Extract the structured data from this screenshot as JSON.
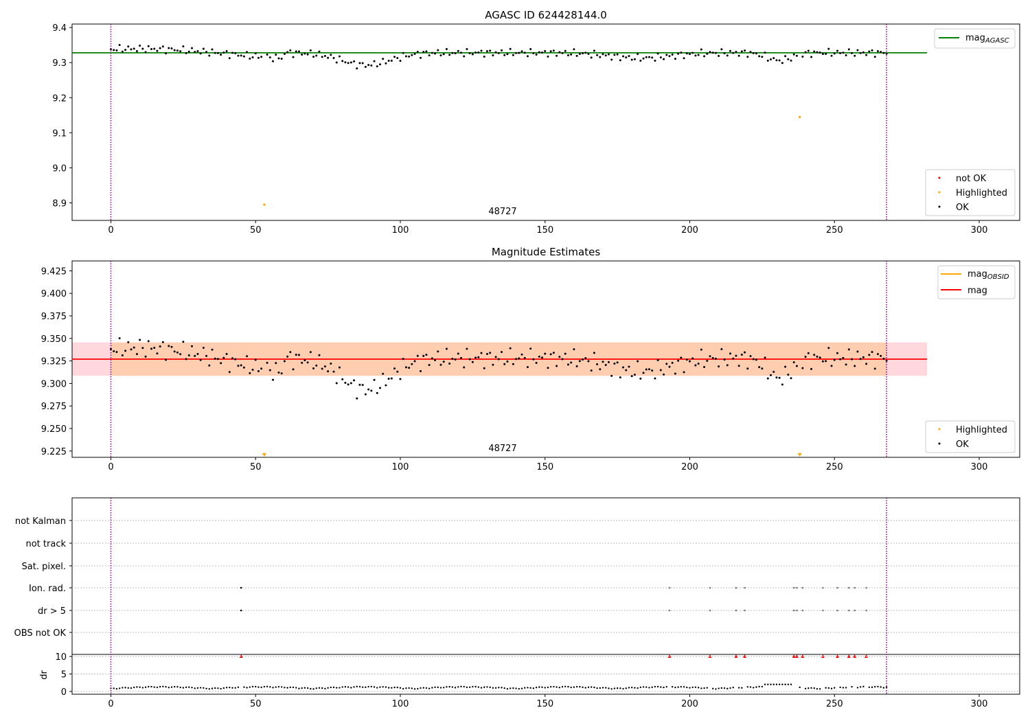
{
  "chart_data": [
    {
      "type": "scatter",
      "title": "AGASC ID 624428144.0",
      "annotation": "48727",
      "xlim": [
        -13.4,
        314
      ],
      "ylim": [
        8.85,
        9.41
      ],
      "xticks": [
        "0",
        "50",
        "100",
        "150",
        "200",
        "250",
        "300"
      ],
      "yticks": [
        "9.4",
        "9.3",
        "9.2",
        "9.1",
        "9.0",
        "8.9"
      ],
      "ref_line": {
        "y": 9.328,
        "x_end": 282,
        "color": "#008000"
      },
      "vlines": [
        0,
        268
      ],
      "vline_color": "#800080",
      "legend_top": {
        "placement": "top-right",
        "entries": [
          {
            "label": "mag",
            "sub": "AGASC",
            "color": "#008000"
          }
        ]
      },
      "legend_bottom": {
        "placement": "bottom-right",
        "entries": [
          {
            "label": "not OK",
            "color": "#ff0000"
          },
          {
            "label": "Highlighted",
            "color": "#ffa500"
          },
          {
            "label": "OK",
            "color": "#000000"
          }
        ]
      },
      "highlighted": [
        {
          "x": 53,
          "y": 8.895
        },
        {
          "x": 238,
          "y": 9.145
        }
      ]
    },
    {
      "type": "scatter",
      "title": "Magnitude Estimates",
      "annotation": "48727",
      "xlim": [
        -13.4,
        314
      ],
      "ylim": [
        9.218,
        9.436
      ],
      "xticks": [
        "0",
        "50",
        "100",
        "150",
        "200",
        "250",
        "300"
      ],
      "yticks": [
        "9.425",
        "9.400",
        "9.375",
        "9.350",
        "9.325",
        "9.300",
        "9.275",
        "9.250",
        "9.225"
      ],
      "mag_line": {
        "y": 9.327,
        "x_end": 282,
        "color": "#ff0000"
      },
      "band": {
        "y_low": 9.3085,
        "y_high": 9.3455,
        "x_start": 0,
        "x_end": 268,
        "color": "#ffa500"
      },
      "band_outer": {
        "y_low": 9.3085,
        "y_high": 9.3455,
        "x_start": -13.4,
        "x_end": 282,
        "color": "#ffb6c1"
      },
      "vlines": [
        0,
        268
      ],
      "legend_top": {
        "placement": "top-right",
        "entries": [
          {
            "label": "mag",
            "sub": "OBSID",
            "color": "#ffa500"
          },
          {
            "label": "mag",
            "sub": "",
            "color": "#ff0000"
          }
        ]
      },
      "legend_bottom": {
        "placement": "bottom-right",
        "entries": [
          {
            "label": "Highlighted",
            "color": "#ffa500"
          },
          {
            "label": "OK",
            "color": "#000000"
          }
        ]
      },
      "highlighted_offscale": [
        53,
        238
      ]
    },
    {
      "type": "scatter",
      "title": "",
      "categories": [
        "not Kalman",
        "not track",
        "Sat. pixel.",
        "Ion. rad.",
        "dr > 5",
        "OBS not OK"
      ],
      "flags": {
        "Ion. rad.": [
          45,
          193,
          207,
          216,
          219,
          236,
          237,
          239,
          246,
          251,
          255,
          257,
          261
        ],
        "dr > 5": [
          45,
          193,
          207,
          216,
          219,
          236,
          237,
          239,
          246,
          251,
          255,
          257,
          261
        ]
      },
      "dr_panel": {
        "ylabel": "dr",
        "yticks": [
          "10",
          "5",
          "0"
        ],
        "ylim": [
          -0.8,
          10.6
        ],
        "xlim": [
          -13.4,
          314
        ],
        "xticks": [
          "0",
          "50",
          "100",
          "150",
          "200",
          "250",
          "300"
        ],
        "clipped_at": 10,
        "clipped_x": [
          45,
          193,
          207,
          216,
          219,
          236,
          237,
          239,
          246,
          251,
          255,
          257,
          261
        ]
      },
      "vlines": [
        0,
        268
      ]
    }
  ]
}
